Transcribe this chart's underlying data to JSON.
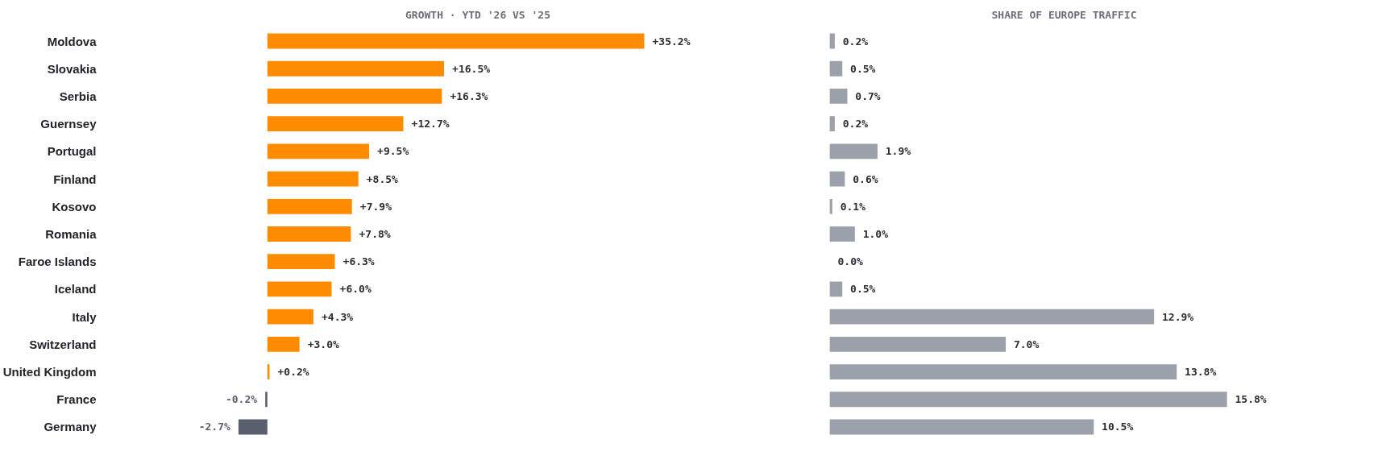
{
  "chart_data": [
    {
      "type": "bar",
      "orientation": "horizontal",
      "title": "GROWTH · YTD '26 VS '25",
      "tick_labels": "y",
      "categories": [
        "Moldova",
        "Slovakia",
        "Serbia",
        "Guernsey",
        "Portugal",
        "Finland",
        "Kosovo",
        "Romania",
        "Faroe Islands",
        "Iceland",
        "Italy",
        "Switzerland",
        "United Kingdom",
        "France",
        "Germany"
      ],
      "values": [
        35.2,
        16.5,
        16.3,
        12.7,
        9.5,
        8.5,
        7.9,
        7.8,
        6.3,
        6.0,
        4.3,
        3.0,
        0.2,
        -0.2,
        -2.7
      ],
      "colors": [
        "#ff8c00",
        "#ff8c00",
        "#ff8c00",
        "#ff8c00",
        "#ff8c00",
        "#ff8c00",
        "#ff8c00",
        "#ff8c00",
        "#ff8c00",
        "#ff8c00",
        "#ff8c00",
        "#ff8c00",
        "#ff8c00",
        "#5a5f6e",
        "#5a5f6e"
      ],
      "value_labels": [
        "+35.2%",
        "+16.5%",
        "+16.3%",
        "+12.7%",
        "+9.5%",
        "+8.5%",
        "+7.9%",
        "+7.8%",
        "+6.3%",
        "+6.0%",
        "+4.3%",
        "+3.0%",
        "+0.2%",
        "-0.2%",
        "-2.7%"
      ]
    },
    {
      "type": "bar",
      "orientation": "horizontal",
      "title": "SHARE OF EUROPE TRAFFIC",
      "tick_labels": false,
      "values": [
        0.2,
        0.5,
        0.7,
        0.2,
        1.9,
        0.6,
        0.1,
        1.0,
        0.0,
        0.5,
        12.9,
        7.0,
        13.8,
        15.8,
        10.5
      ],
      "colors": [
        "#9ca0ab",
        "#9ca0ab",
        "#9ca0ab",
        "#9ca0ab",
        "#9ca0ab",
        "#9ca0ab",
        "#9ca0ab",
        "#9ca0ab",
        "#9ca0ab",
        "#9ca0ab",
        "#9ca0ab",
        "#9ca0ab",
        "#9ca0ab",
        "#9ca0ab",
        "#9ca0ab"
      ],
      "value_labels": [
        "0.2%",
        "0.5%",
        "0.7%",
        "0.2%",
        "1.9%",
        "0.6%",
        "0.1%",
        "1.0%",
        "0.0%",
        "0.5%",
        "12.9%",
        "7.0%",
        "13.8%",
        "15.8%",
        "10.5%"
      ]
    }
  ]
}
